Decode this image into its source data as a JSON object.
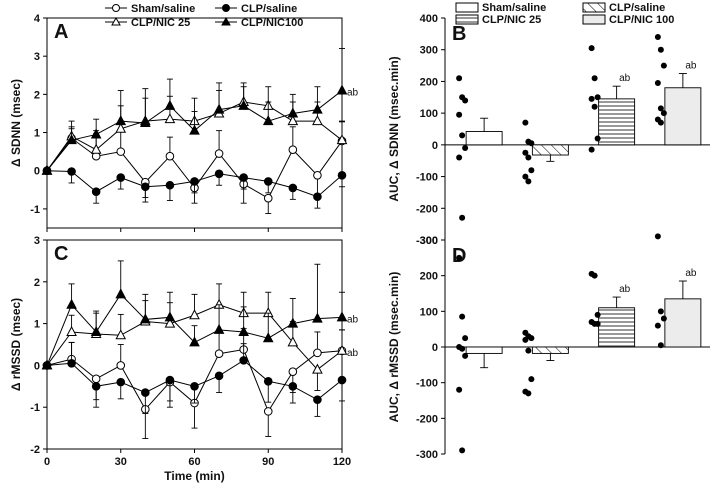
{
  "figure": {
    "legend_left": [
      "Sham/saline",
      "CLP/saline",
      "CLP/NIC 25",
      "CLP/NIC100"
    ],
    "legend_right": [
      "Sham/saline",
      "CLP/saline",
      "CLP/NIC 25",
      "CLP/NIC 100"
    ],
    "colors": {
      "ink": "#000000",
      "bar_light": "#ffffff",
      "bar_gray": "#ececec"
    }
  },
  "chart_data": [
    {
      "id": "A",
      "type": "line",
      "label": "A",
      "xlabel": "",
      "ylabel": "Δ SDNN (msec)",
      "xlim": [
        0,
        120
      ],
      "ylim": [
        -1.5,
        4
      ],
      "yticks": [
        -1,
        0,
        1,
        2,
        3,
        4
      ],
      "xticks": [
        0,
        30,
        60,
        90,
        120
      ],
      "x": [
        0,
        10,
        20,
        30,
        40,
        50,
        60,
        70,
        80,
        90,
        100,
        110,
        120
      ],
      "series": [
        {
          "name": "Sham/saline",
          "marker": "open-circle",
          "values": [
            0,
            0.85,
            0.38,
            0.5,
            -0.3,
            0.38,
            -0.45,
            0.45,
            -0.35,
            -0.72,
            0.55,
            -0.12,
            0.78
          ],
          "errors": [
            0,
            0.3,
            0.6,
            0.8,
            0.4,
            0.5,
            0.4,
            0.6,
            0.5,
            0.4,
            0.6,
            0.5,
            0.5
          ]
        },
        {
          "name": "CLP/saline",
          "marker": "filled-circle",
          "values": [
            0,
            -0.02,
            -0.55,
            -0.18,
            -0.42,
            -0.38,
            -0.28,
            -0.08,
            -0.18,
            -0.28,
            -0.45,
            -0.68,
            -0.12
          ],
          "errors": [
            0,
            0.3,
            0.3,
            0.3,
            0.4,
            0.4,
            0.3,
            0.3,
            0.3,
            0.3,
            0.3,
            0.3,
            0.3
          ]
        },
        {
          "name": "CLP/NIC 25",
          "marker": "open-triangle",
          "values": [
            0,
            0.9,
            0.55,
            1.1,
            1.3,
            1.35,
            1.3,
            1.5,
            1.8,
            1.7,
            1.3,
            1.3,
            0.8
          ],
          "errors": [
            0,
            0.4,
            0.5,
            0.6,
            0.6,
            0.6,
            0.6,
            0.6,
            0.5,
            0.5,
            0.5,
            0.5,
            0.5
          ]
        },
        {
          "name": "CLP/NIC100",
          "marker": "filled-triangle",
          "values": [
            0,
            0.8,
            0.95,
            1.3,
            1.25,
            1.7,
            1.05,
            1.6,
            1.7,
            1.3,
            1.5,
            1.6,
            2.1
          ],
          "errors": [
            0,
            0.3,
            0.4,
            0.8,
            0.9,
            0.7,
            0.5,
            0.7,
            0.5,
            0.5,
            0.5,
            0.6,
            1.1
          ]
        }
      ],
      "annotations": [
        {
          "text": "ab",
          "series": "CLP/NIC100",
          "at": 120
        }
      ]
    },
    {
      "id": "C",
      "type": "line",
      "label": "C",
      "xlabel": "Time (min)",
      "ylabel": "Δ rMSSD (msec)",
      "xlim": [
        0,
        120
      ],
      "ylim": [
        -2,
        3
      ],
      "yticks": [
        -2,
        -1,
        0,
        1,
        2,
        3
      ],
      "xticks": [
        0,
        30,
        60,
        90,
        120
      ],
      "x": [
        0,
        10,
        20,
        30,
        40,
        50,
        60,
        70,
        80,
        90,
        100,
        110,
        120
      ],
      "series": [
        {
          "name": "Sham/saline",
          "marker": "open-circle",
          "values": [
            0,
            0.15,
            -0.32,
            0.0,
            -1.05,
            -0.4,
            -0.9,
            0.28,
            0.38,
            -1.1,
            -0.15,
            0.3,
            0.35
          ],
          "errors": [
            0,
            0.4,
            0.5,
            0.5,
            0.7,
            0.6,
            0.6,
            0.5,
            0.5,
            0.6,
            0.5,
            0.5,
            0.5
          ]
        },
        {
          "name": "CLP/saline",
          "marker": "filled-circle",
          "values": [
            0,
            0.05,
            -0.5,
            -0.4,
            -0.65,
            -0.35,
            -0.5,
            -0.25,
            0.12,
            -0.38,
            -0.5,
            -0.82,
            -0.35
          ],
          "errors": [
            0,
            0.5,
            0.5,
            0.4,
            0.5,
            0.5,
            0.4,
            0.4,
            0.4,
            0.5,
            0.4,
            0.4,
            0.5
          ]
        },
        {
          "name": "CLP/NIC 25",
          "marker": "open-triangle",
          "values": [
            0,
            0.8,
            0.75,
            0.72,
            1.05,
            1.0,
            1.2,
            1.45,
            1.25,
            1.25,
            0.55,
            -0.1,
            0.35
          ],
          "errors": [
            0,
            0.4,
            0.5,
            0.5,
            0.5,
            0.5,
            0.5,
            0.5,
            0.5,
            0.5,
            0.5,
            0.5,
            0.5
          ]
        },
        {
          "name": "CLP/NIC100",
          "marker": "filled-triangle",
          "values": [
            0,
            1.45,
            0.8,
            1.7,
            1.1,
            1.15,
            0.55,
            0.85,
            0.8,
            0.65,
            1.0,
            1.12,
            1.15
          ],
          "errors": [
            0,
            0.5,
            0.5,
            0.8,
            0.6,
            0.6,
            0.4,
            0.6,
            0.6,
            0.6,
            0.6,
            1.3,
            0.6
          ]
        }
      ],
      "annotations": [
        {
          "text": "ab",
          "series": "CLP/NIC100",
          "at": 120
        },
        {
          "text": "ab",
          "series": "CLP/NIC 25",
          "at": 120
        }
      ]
    },
    {
      "id": "B",
      "type": "bar",
      "label": "B",
      "xlabel": "",
      "ylabel": "AUC, Δ SDNN (msec.min)",
      "ylim": [
        -300,
        400
      ],
      "yticks": [
        -300,
        -200,
        -100,
        0,
        100,
        200,
        300,
        400
      ],
      "categories": [
        "Sham/saline",
        "CLP/saline",
        "CLP/NIC 25",
        "CLP/NIC 100"
      ],
      "values": [
        42,
        -32,
        145,
        180
      ],
      "errors": [
        42,
        20,
        40,
        45
      ],
      "labels": [
        "",
        "",
        "ab",
        "ab"
      ],
      "points": [
        [
          210,
          150,
          140,
          95,
          30,
          -10,
          -40,
          -230
        ],
        [
          70,
          10,
          5,
          -25,
          -40,
          -80,
          -100,
          -115
        ],
        [
          305,
          210,
          150,
          145,
          120,
          20,
          -15
        ],
        [
          340,
          300,
          250,
          195,
          115,
          100,
          80,
          70
        ]
      ]
    },
    {
      "id": "D",
      "type": "bar",
      "label": "D",
      "xlabel": "",
      "ylabel": "AUC, Δ rMSSD (msec.min)",
      "ylim": [
        -300,
        300
      ],
      "yticks": [
        -300,
        -200,
        -100,
        0,
        100,
        200,
        300
      ],
      "categories": [
        "Sham/saline",
        "CLP/saline",
        "CLP/NIC 25",
        "CLP/NIC 100"
      ],
      "values": [
        -18,
        -18,
        110,
        135
      ],
      "errors": [
        40,
        20,
        30,
        50
      ],
      "labels": [
        "",
        "",
        "ab",
        "ab"
      ],
      "points": [
        [
          250,
          85,
          25,
          0,
          -5,
          -25,
          -120,
          -290
        ],
        [
          40,
          30,
          25,
          20,
          -10,
          -90,
          -125,
          -130
        ],
        [
          205,
          200,
          90,
          70,
          65,
          65
        ],
        [
          310,
          100,
          80,
          60,
          5
        ]
      ]
    }
  ]
}
